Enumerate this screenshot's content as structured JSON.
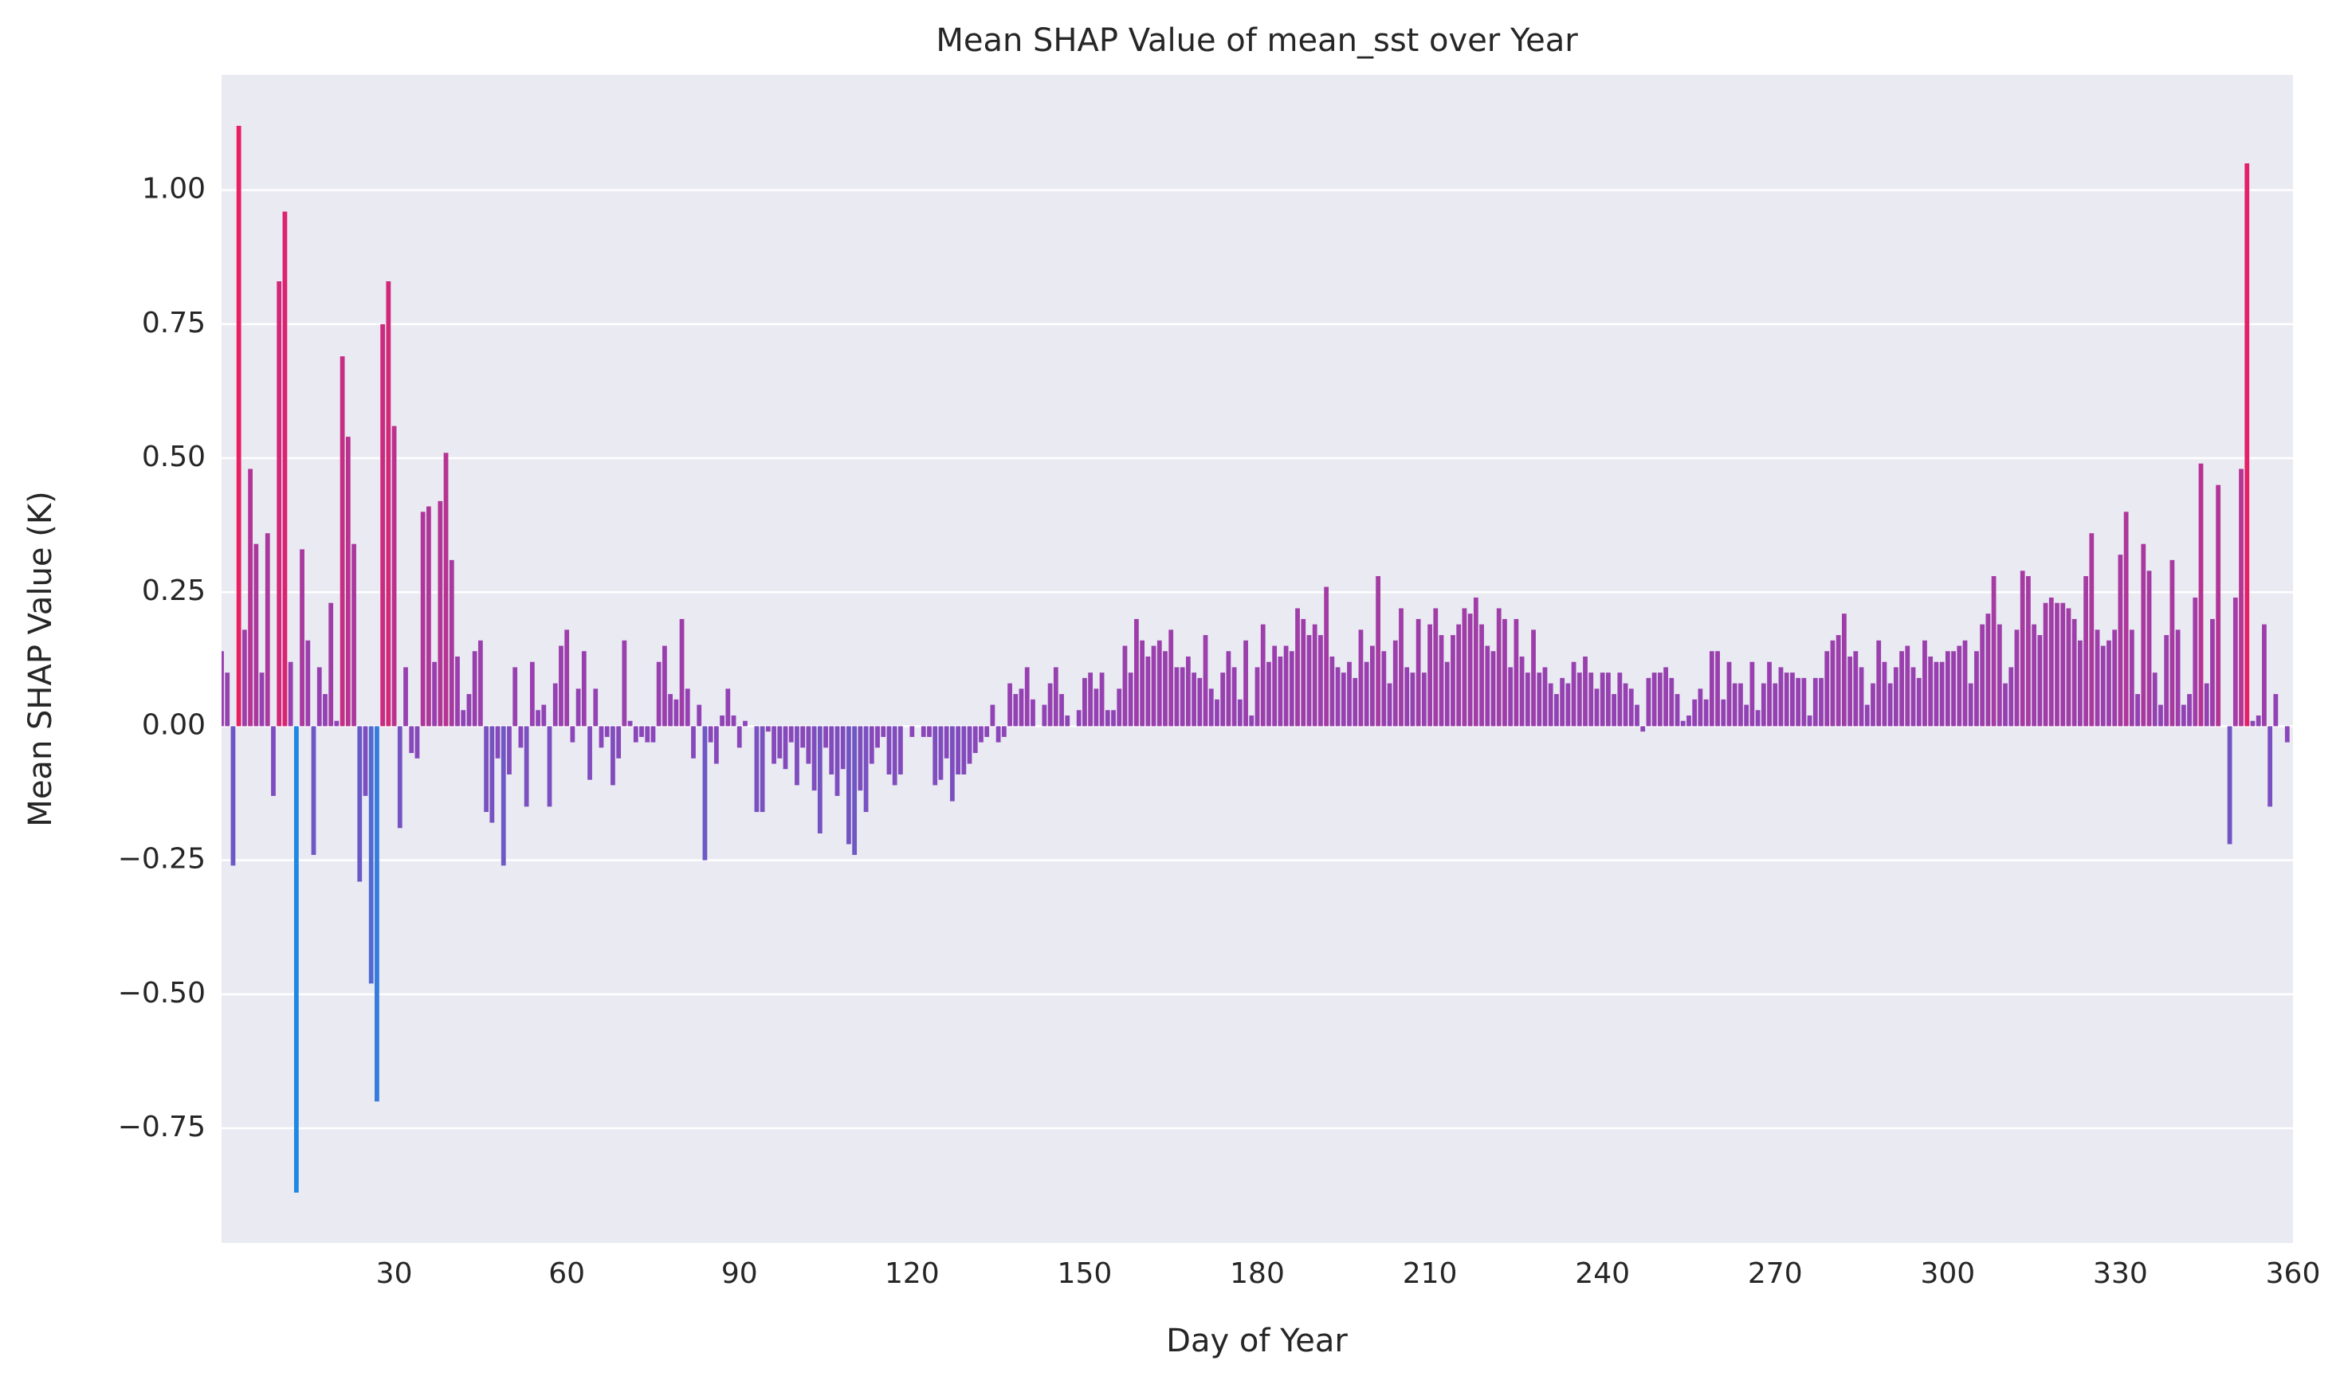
{
  "chart_data": {
    "type": "bar",
    "title": "Mean SHAP Value of mean_sst over Year",
    "x_label": "Day of Year",
    "y_label": "Mean SHAP Value (K)",
    "values": [
      0.14,
      0.1,
      -0.26,
      1.12,
      0.18,
      0.48,
      0.34,
      0.1,
      0.36,
      -0.13,
      0.83,
      0.96,
      0.12,
      -0.87,
      0.33,
      0.16,
      -0.24,
      0.11,
      0.06,
      0.23,
      0.01,
      0.69,
      0.54,
      0.34,
      -0.29,
      -0.13,
      -0.48,
      -0.7,
      0.75,
      0.83,
      0.56,
      -0.19,
      0.11,
      -0.05,
      -0.06,
      0.4,
      0.41,
      0.12,
      0.42,
      0.51,
      0.31,
      0.13,
      0.03,
      0.06,
      0.14,
      0.16,
      -0.16,
      -0.18,
      -0.06,
      -0.26,
      -0.09,
      0.11,
      -0.04,
      -0.15,
      0.12,
      0.03,
      0.04,
      -0.15,
      0.08,
      0.15,
      0.18,
      -0.03,
      0.07,
      0.14,
      -0.1,
      0.07,
      -0.04,
      -0.02,
      -0.11,
      -0.06,
      0.16,
      0.01,
      -0.03,
      -0.02,
      -0.03,
      -0.03,
      0.12,
      0.15,
      0.06,
      0.05,
      0.2,
      0.07,
      -0.06,
      0.04,
      -0.25,
      -0.03,
      -0.07,
      0.02,
      0.07,
      0.02,
      -0.04,
      0.01,
      0.0,
      -0.16,
      -0.16,
      -0.01,
      -0.07,
      -0.06,
      -0.08,
      -0.03,
      -0.11,
      -0.04,
      -0.07,
      -0.12,
      -0.2,
      -0.04,
      -0.09,
      -0.13,
      -0.08,
      -0.22,
      -0.24,
      -0.12,
      -0.16,
      -0.07,
      -0.04,
      -0.02,
      -0.09,
      -0.11,
      -0.09,
      0.0,
      -0.02,
      0.0,
      -0.02,
      -0.02,
      -0.11,
      -0.1,
      -0.06,
      -0.14,
      -0.09,
      -0.09,
      -0.07,
      -0.05,
      -0.03,
      -0.02,
      0.04,
      -0.03,
      -0.02,
      0.08,
      0.06,
      0.07,
      0.11,
      0.05,
      0.0,
      0.04,
      0.08,
      0.11,
      0.06,
      0.02,
      0.0,
      0.03,
      0.09,
      0.1,
      0.07,
      0.1,
      0.03,
      0.03,
      0.07,
      0.15,
      0.1,
      0.2,
      0.16,
      0.13,
      0.15,
      0.16,
      0.14,
      0.18,
      0.11,
      0.11,
      0.13,
      0.1,
      0.09,
      0.17,
      0.07,
      0.05,
      0.1,
      0.14,
      0.11,
      0.05,
      0.16,
      0.02,
      0.11,
      0.19,
      0.12,
      0.15,
      0.13,
      0.15,
      0.14,
      0.22,
      0.2,
      0.17,
      0.19,
      0.17,
      0.26,
      0.13,
      0.11,
      0.1,
      0.12,
      0.09,
      0.18,
      0.12,
      0.15,
      0.28,
      0.14,
      0.08,
      0.16,
      0.22,
      0.11,
      0.1,
      0.2,
      0.1,
      0.19,
      0.22,
      0.17,
      0.12,
      0.17,
      0.19,
      0.22,
      0.21,
      0.24,
      0.19,
      0.15,
      0.14,
      0.22,
      0.2,
      0.11,
      0.2,
      0.13,
      0.1,
      0.18,
      0.1,
      0.11,
      0.08,
      0.06,
      0.09,
      0.08,
      0.12,
      0.1,
      0.13,
      0.1,
      0.07,
      0.1,
      0.1,
      0.06,
      0.1,
      0.08,
      0.07,
      0.04,
      -0.01,
      0.09,
      0.1,
      0.1,
      0.11,
      0.09,
      0.06,
      0.01,
      0.02,
      0.05,
      0.07,
      0.05,
      0.14,
      0.14,
      0.05,
      0.12,
      0.08,
      0.08,
      0.04,
      0.12,
      0.03,
      0.08,
      0.12,
      0.08,
      0.11,
      0.1,
      0.1,
      0.09,
      0.09,
      0.02,
      0.09,
      0.09,
      0.14,
      0.16,
      0.17,
      0.21,
      0.13,
      0.14,
      0.11,
      0.04,
      0.08,
      0.16,
      0.12,
      0.08,
      0.11,
      0.14,
      0.15,
      0.11,
      0.09,
      0.16,
      0.13,
      0.12,
      0.12,
      0.14,
      0.14,
      0.15,
      0.16,
      0.08,
      0.14,
      0.19,
      0.21,
      0.28,
      0.19,
      0.08,
      0.11,
      0.18,
      0.29,
      0.28,
      0.19,
      0.17,
      0.23,
      0.24,
      0.23,
      0.23,
      0.22,
      0.2,
      0.16,
      0.28,
      0.36,
      0.18,
      0.15,
      0.16,
      0.18,
      0.32,
      0.4,
      0.18,
      0.06,
      0.34,
      0.29,
      0.1,
      0.04,
      0.17,
      0.31,
      0.18,
      0.04,
      0.06,
      0.24,
      0.49,
      0.08,
      0.2,
      0.45,
      0.0,
      -0.22,
      0.24,
      0.48,
      1.05,
      0.01,
      0.02,
      0.19,
      -0.15,
      0.06,
      0.0,
      -0.03
    ],
    "colors": [
      "#1e88e5",
      "#8e44b8",
      "#e91e63"
    ],
    "xlim": [
      0,
      360
    ],
    "xticks": [
      30,
      60,
      90,
      120,
      150,
      180,
      210,
      240,
      270,
      300,
      330,
      360
    ],
    "ylim": [
      -0.964,
      1.215
    ],
    "yticks": [
      {
        "value": -0.75,
        "label": "−0.75"
      },
      {
        "value": -0.5,
        "label": "−0.50"
      },
      {
        "value": -0.25,
        "label": "−0.25"
      },
      {
        "value": 0,
        "label": "0.00"
      },
      {
        "value": 0.25,
        "label": "0.25"
      },
      {
        "value": 0.5,
        "label": "0.50"
      },
      {
        "value": 0.75,
        "label": "0.75"
      },
      {
        "value": 1,
        "label": "1.00"
      }
    ],
    "grid": true
  }
}
